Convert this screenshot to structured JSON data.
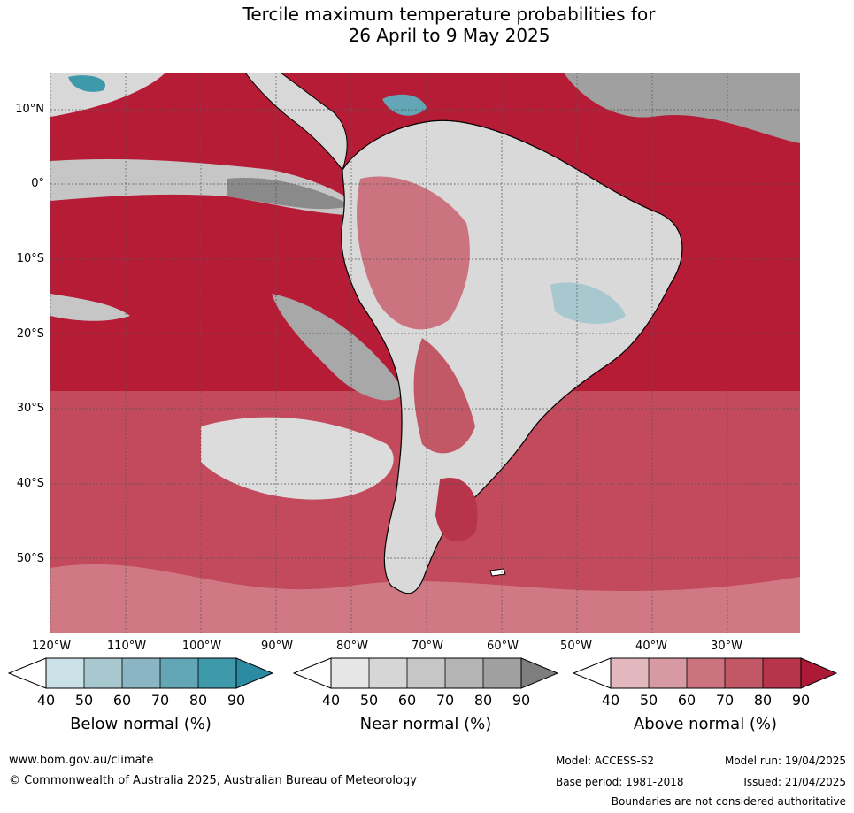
{
  "title": {
    "line1": "Tercile maximum temperature probabilities for",
    "line2": "26 April to 9 May 2025"
  },
  "map": {
    "lat_labels": [
      "10°N",
      "0°",
      "10°S",
      "20°S",
      "30°S",
      "40°S",
      "50°S"
    ],
    "lon_labels": [
      "120°W",
      "110°W",
      "100°W",
      "90°W",
      "80°W",
      "70°W",
      "60°W",
      "50°W",
      "40°W",
      "30°W"
    ],
    "ocean_color": "#b71c37",
    "land_outline_color": "#000000",
    "border_color": "#777777"
  },
  "colorbars": [
    {
      "title": "Below normal (%)",
      "ticks": [
        "40",
        "50",
        "60",
        "70",
        "80",
        "90"
      ],
      "colors": [
        "#ffffff",
        "#c9e1e7",
        "#a7c8cf",
        "#8bb5c2",
        "#63a7b6",
        "#3e99ab",
        "#2a8ba3"
      ]
    },
    {
      "title": "Near normal (%)",
      "ticks": [
        "40",
        "50",
        "60",
        "70",
        "80",
        "90"
      ],
      "colors": [
        "#ffffff",
        "#e6e6e6",
        "#d6d6d6",
        "#c6c6c6",
        "#b4b4b4",
        "#a0a0a0",
        "#7e7e7e"
      ]
    },
    {
      "title": "Above normal (%)",
      "ticks": [
        "40",
        "50",
        "60",
        "70",
        "80",
        "90"
      ],
      "colors": [
        "#ffffff",
        "#e2b7bd",
        "#d79aa3",
        "#cb7480",
        "#c25766",
        "#b8344a",
        "#ad1a35"
      ]
    }
  ],
  "footer": {
    "website": "www.bom.gov.au/climate",
    "copyright": "© Commonwealth of Australia 2025, Australian Bureau of Meteorology",
    "model": "Model: ACCESS-S2",
    "base_period": "Base period: 1981-2018",
    "model_run": "Model run: 19/04/2025",
    "issued": "Issued: 21/04/2025",
    "disclaimer": "Boundaries are not considered authoritative"
  }
}
